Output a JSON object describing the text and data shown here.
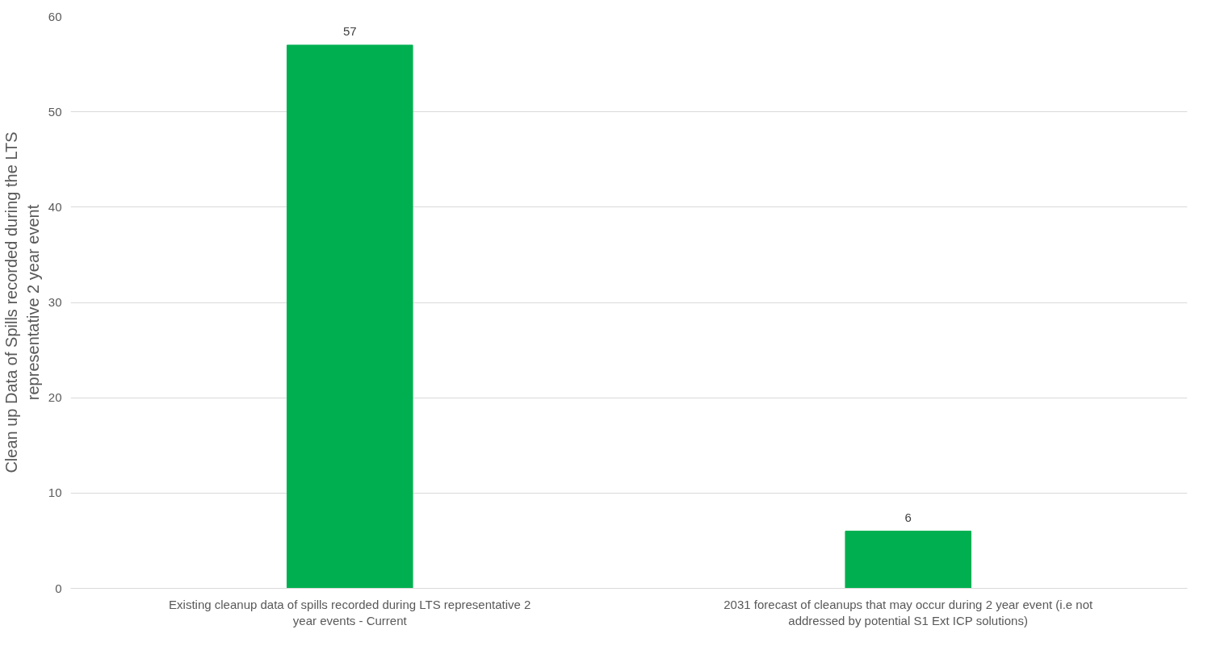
{
  "chart_data": {
    "type": "bar",
    "ylabel": "Clean up Data of Spills recorded during the LTS representative 2 year event",
    "categories": [
      "Existing cleanup data of spills recorded during LTS representative 2 year events - Current",
      "2031 forecast of cleanups that may occur during 2 year event (i.e not addressed by potential S1 Ext ICP solutions)"
    ],
    "values": [
      57,
      6
    ],
    "color": "#00b050",
    "ylim": [
      0,
      60
    ],
    "yticks": [
      0,
      10,
      20,
      30,
      40,
      50,
      60
    ],
    "grid": "y",
    "data_labels": true
  }
}
